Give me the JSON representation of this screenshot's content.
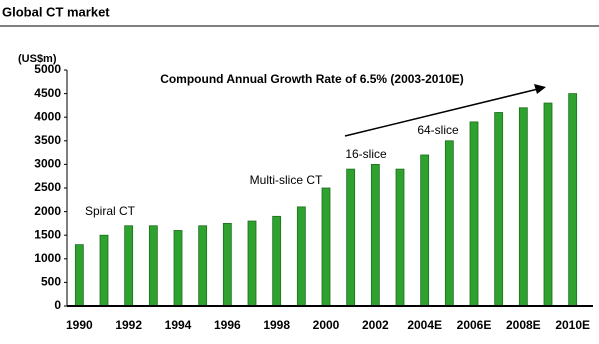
{
  "chart_data": {
    "type": "bar",
    "title": "Global CT market",
    "y_label": "(US$m)",
    "annotations": [
      "Compound Annual Growth Rate  of 6.5% (2003-2010E)",
      "Spiral CT",
      "Multi-slice CT",
      "16-slice",
      "64-slice"
    ],
    "categories": [
      "1990",
      null,
      "1992",
      null,
      "1994",
      null,
      "1996",
      null,
      "1998",
      null,
      "2000",
      null,
      "2002",
      null,
      "2004E",
      null,
      "2006E",
      null,
      "2008E",
      null,
      "2010E"
    ],
    "values": [
      1300,
      1500,
      1700,
      1700,
      1600,
      1700,
      1750,
      1800,
      1900,
      2100,
      2500,
      2900,
      3000,
      2900,
      3200,
      3500,
      3900,
      4100,
      4200,
      4300,
      4500
    ],
    "color": "#2ea12e",
    "ylim": [
      0,
      5000
    ],
    "yticks": [
      0,
      500,
      1000,
      1500,
      2000,
      2500,
      3000,
      3500,
      4000,
      4500,
      5000
    ],
    "grid": false
  }
}
